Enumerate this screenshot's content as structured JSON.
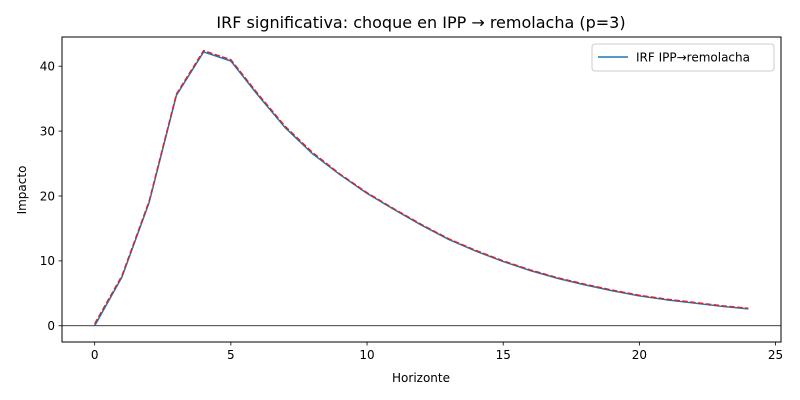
{
  "chart_data": {
    "type": "line",
    "title": "IRF significativa: choque en IPP → remolacha (p=3)",
    "xlabel": "Horizonte",
    "ylabel": "Impacto",
    "xlim": [
      -1.2,
      25.2
    ],
    "ylim": [
      -2.5,
      44.5
    ],
    "xticks": [
      0,
      5,
      10,
      15,
      20,
      25
    ],
    "yticks": [
      0,
      10,
      20,
      30,
      40
    ],
    "grid": false,
    "legend_position": "top-right",
    "hline_y": 0,
    "x": [
      0,
      1,
      2,
      3,
      4,
      5,
      6,
      7,
      8,
      9,
      10,
      11,
      12,
      13,
      14,
      15,
      16,
      17,
      18,
      19,
      20,
      21,
      22,
      23,
      24
    ],
    "series": [
      {
        "name": "IRF IPP→remolacha",
        "color": "#1f77b4",
        "style": "solid",
        "values": [
          0.0,
          7.5,
          19.0,
          35.5,
          42.2,
          40.8,
          35.5,
          30.5,
          26.5,
          23.3,
          20.4,
          17.9,
          15.5,
          13.3,
          11.5,
          9.9,
          8.5,
          7.3,
          6.3,
          5.4,
          4.6,
          4.0,
          3.5,
          3.0,
          2.6
        ]
      },
      {
        "color": "#d62728",
        "style": "dashed",
        "values": [
          0.3,
          7.7,
          19.2,
          35.7,
          42.4,
          41.0,
          35.7,
          30.7,
          26.7,
          23.4,
          20.5,
          18.0,
          15.6,
          13.4,
          11.6,
          10.0,
          8.6,
          7.4,
          6.4,
          5.5,
          4.7,
          4.1,
          3.6,
          3.1,
          2.7
        ]
      }
    ]
  }
}
